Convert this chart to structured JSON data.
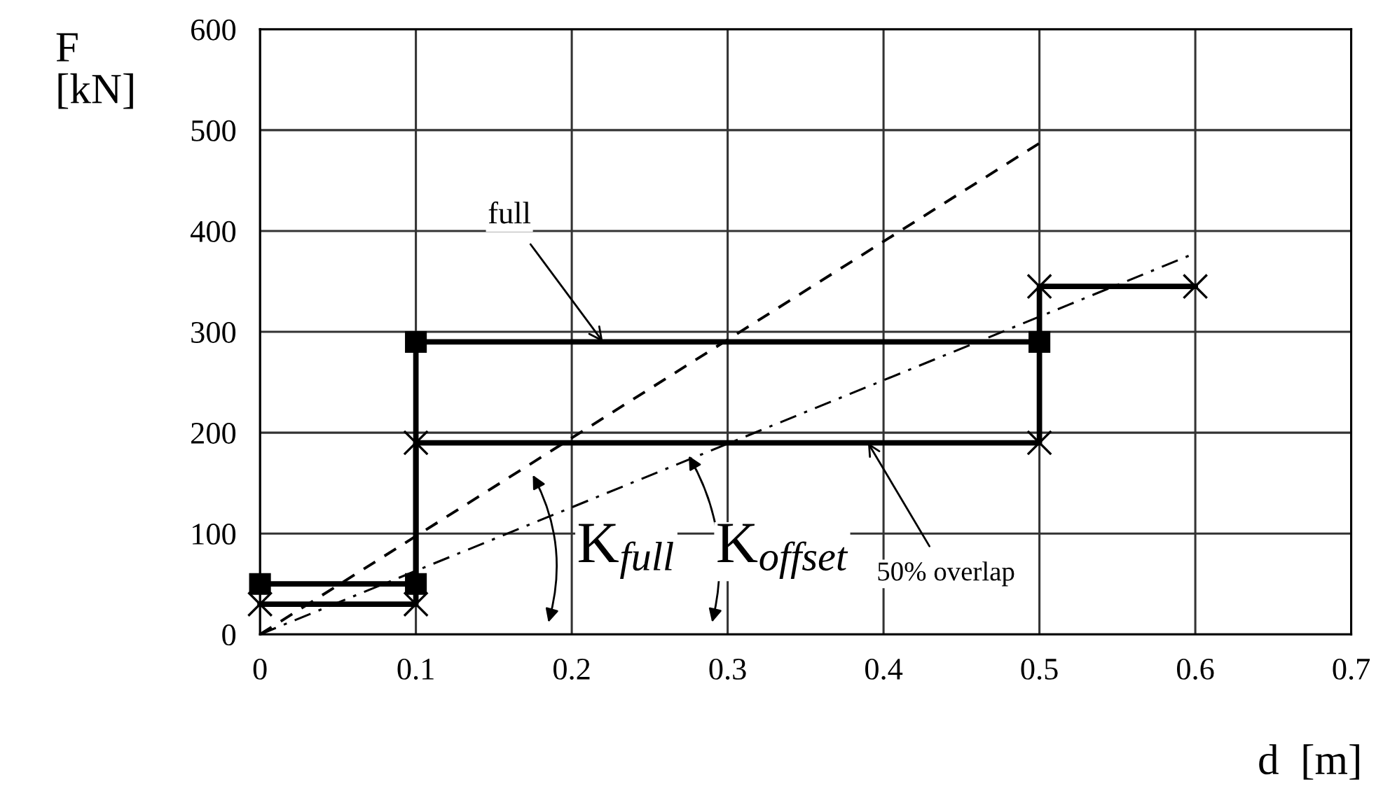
{
  "chart_data": {
    "type": "line",
    "xlabel": "d  [m]",
    "ylabel": "F\n[kN]",
    "xlim": [
      0,
      0.7
    ],
    "ylim": [
      0,
      600
    ],
    "xticks": [
      0,
      0.1,
      0.2,
      0.3,
      0.4,
      0.5,
      0.6,
      0.7
    ],
    "yticks": [
      0,
      100,
      200,
      300,
      400,
      500,
      600
    ],
    "grid": true,
    "series": [
      {
        "color": "#000000",
        "x": [
          0,
          0.1,
          0.1,
          0.5
        ],
        "values": [
          50,
          50,
          290,
          290
        ],
        "marker": "square",
        "line_style": "solid"
      },
      {
        "color": "#000000",
        "x": [
          0,
          0.1,
          0.1,
          0.5,
          0.5,
          0.6
        ],
        "values": [
          30,
          30,
          190,
          190,
          345,
          345
        ],
        "marker": "cross",
        "line_style": "solid"
      },
      {
        "color": "#000000",
        "x": [
          0,
          0.5
        ],
        "values": [
          0,
          487
        ],
        "marker": "none",
        "line_style": "dashed"
      },
      {
        "color": "#000000",
        "x": [
          0,
          0.6
        ],
        "values": [
          0,
          378
        ],
        "marker": "none",
        "line_style": "dashdot"
      }
    ],
    "annotations": [
      {
        "text": "full",
        "x": 0.22,
        "y": 290
      },
      {
        "text": "50% overlap",
        "x": 0.39,
        "y": 190
      },
      "K$_{full}$",
      "K$_{offset}$"
    ]
  }
}
